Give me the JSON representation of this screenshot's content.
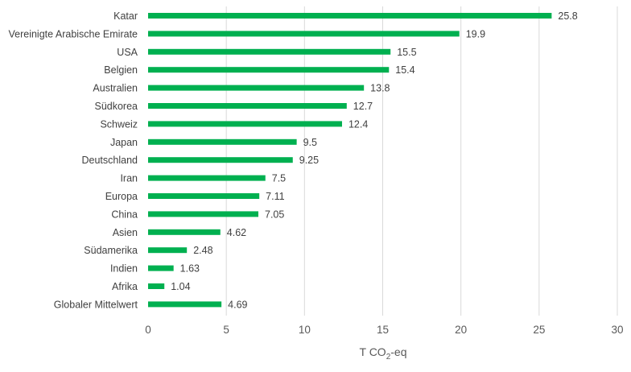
{
  "chart_data": {
    "type": "bar",
    "orientation": "horizontal",
    "categories": [
      "Katar",
      "Vereinigte Arabische Emirate",
      "USA",
      "Belgien",
      "Australien",
      "Südkorea",
      "Schweiz",
      "Japan",
      "Deutschland",
      "Iran",
      "Europa",
      "China",
      "Asien",
      "Südamerika",
      "Indien",
      "Afrika",
      "Globaler Mittelwert"
    ],
    "values": [
      25.8,
      19.9,
      15.5,
      15.4,
      13.8,
      12.7,
      12.4,
      9.5,
      9.25,
      7.5,
      7.11,
      7.05,
      4.62,
      2.48,
      1.63,
      1.04,
      4.69
    ],
    "value_labels": [
      "25.8",
      "19.9",
      "15.5",
      "15.4",
      "13.8",
      "12.7",
      "12.4",
      "9.5",
      "9.25",
      "7.5",
      "7.11",
      "7.05",
      "4.62",
      "2.48",
      "1.63",
      "1.04",
      "4.69"
    ],
    "xlim": [
      0,
      30
    ],
    "xticks": [
      "0",
      "5",
      "10",
      "15",
      "20",
      "25",
      "30"
    ],
    "xlabel_main": "T CO",
    "xlabel_sub": "2",
    "xlabel_suffix": "-eq",
    "bar_color": "#00b050",
    "grid": true,
    "legend": "none"
  }
}
